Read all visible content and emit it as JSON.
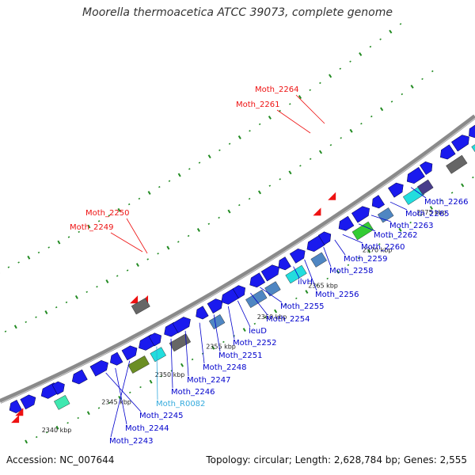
{
  "title": "Moorella thermoacetica ATCC 39073, complete genome",
  "footer": {
    "accession": "Accession: NC_007644",
    "topology": "Topology: circular; Length: 2,628,784 bp; Genes: 2,555"
  },
  "colors": {
    "backbone": "#8a8a8a",
    "gene": "#1a1aee",
    "gene_label": "#0000cc",
    "rna_label": "#33aadd",
    "pseudo_label": "#ee1111",
    "cog_steel": "#4f86c2",
    "cog_cyan": "#22dddd",
    "cog_green": "#33cc33",
    "cog_gray": "#666666",
    "cog_olive": "#6b8e23",
    "cog_teal": "#3fe8b0",
    "cog_purple": "#483d8b",
    "gc_dash": "#228b22"
  },
  "kbp_ticks": [
    "2340 kbp",
    "2345 kbp",
    "2350 kbp",
    "2355 kbp",
    "2360 kbp",
    "2365 kbp",
    "2370 kbp",
    "2375 kbp"
  ],
  "gene_labels": [
    {
      "text": "Moth_2243",
      "kind": "gene"
    },
    {
      "text": "Moth_2244",
      "kind": "gene"
    },
    {
      "text": "Moth_2245",
      "kind": "gene"
    },
    {
      "text": "Moth_R0082",
      "kind": "rna"
    },
    {
      "text": "Moth_2246",
      "kind": "gene"
    },
    {
      "text": "Moth_2247",
      "kind": "gene"
    },
    {
      "text": "Moth_2248",
      "kind": "gene"
    },
    {
      "text": "Moth_2251",
      "kind": "gene"
    },
    {
      "text": "Moth_2252",
      "kind": "gene"
    },
    {
      "text": "leuD",
      "kind": "gene"
    },
    {
      "text": "Moth_2254",
      "kind": "gene"
    },
    {
      "text": "Moth_2255",
      "kind": "gene"
    },
    {
      "text": "ilvH",
      "kind": "gene"
    },
    {
      "text": "Moth_2256",
      "kind": "gene"
    },
    {
      "text": "Moth_2258",
      "kind": "gene"
    },
    {
      "text": "Moth_2259",
      "kind": "gene"
    },
    {
      "text": "Moth_2260",
      "kind": "gene"
    },
    {
      "text": "Moth_2262",
      "kind": "gene"
    },
    {
      "text": "Moth_2263",
      "kind": "gene"
    },
    {
      "text": "Moth_2265",
      "kind": "gene"
    },
    {
      "text": "Moth_2266",
      "kind": "gene"
    },
    {
      "text": "Moth_2249",
      "kind": "pseudo"
    },
    {
      "text": "Moth_2250",
      "kind": "pseudo"
    },
    {
      "text": "Moth_2261",
      "kind": "pseudo"
    },
    {
      "text": "Moth_2264",
      "kind": "pseudo"
    }
  ]
}
